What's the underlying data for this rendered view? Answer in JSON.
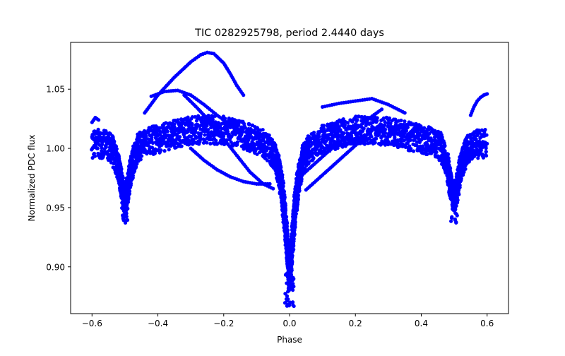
{
  "chart_data": {
    "type": "scatter",
    "title": "TIC 0282925798, period 2.4440 days",
    "xlabel": "Phase",
    "ylabel": "Normalized PDC flux",
    "xlim": [
      -0.665,
      0.665
    ],
    "ylim": [
      0.8605,
      1.0895
    ],
    "xticks": [
      -0.6,
      -0.4,
      -0.2,
      0.0,
      0.2,
      0.4,
      0.6
    ],
    "xtick_labels": [
      "−0.6",
      "−0.4",
      "−0.2",
      "0.0",
      "0.2",
      "0.4",
      "0.6"
    ],
    "yticks": [
      0.9,
      0.95,
      1.0,
      1.05
    ],
    "ytick_labels": [
      "0.90",
      "0.95",
      "1.00",
      "1.05"
    ],
    "grid": false,
    "legend": "none",
    "marker_color": "#0000ff",
    "phase_range": [
      -0.6,
      0.6
    ],
    "primary_eclipse": {
      "phase": 0.0,
      "min_flux": 0.866
    },
    "secondary_eclipse": {
      "phase": -0.5,
      "min_flux": 0.937,
      "repeat_phase": 0.5
    },
    "series": [
      {
        "x": [
          -0.6,
          -0.58,
          -0.56,
          -0.54,
          -0.52,
          -0.51,
          -0.5,
          -0.49,
          -0.48,
          -0.46,
          -0.44,
          -0.4,
          -0.35,
          -0.3,
          -0.25,
          -0.2,
          -0.15,
          -0.1,
          -0.06,
          -0.04,
          -0.025,
          -0.015,
          -0.008,
          -0.003,
          0.0,
          0.003,
          0.008,
          0.015,
          0.025,
          0.04,
          0.06,
          0.1,
          0.15,
          0.2,
          0.25,
          0.3,
          0.35,
          0.4,
          0.44,
          0.46,
          0.48,
          0.49,
          0.5,
          0.51,
          0.52,
          0.54,
          0.56,
          0.58,
          0.6
        ],
        "y": [
          1.004,
          1.004,
          1.003,
          1.0,
          0.985,
          0.968,
          0.957,
          0.968,
          0.985,
          1.001,
          1.005,
          1.008,
          1.012,
          1.015,
          1.016,
          1.015,
          1.012,
          1.007,
          1.0,
          0.99,
          0.97,
          0.945,
          0.92,
          0.9,
          0.893,
          0.9,
          0.92,
          0.945,
          0.97,
          0.99,
          1.0,
          1.008,
          1.012,
          1.015,
          1.016,
          1.014,
          1.011,
          1.008,
          1.005,
          1.001,
          0.985,
          0.968,
          0.957,
          0.968,
          0.985,
          1.0,
          1.003,
          1.004,
          1.004
        ]
      },
      {
        "x": [
          -0.44,
          -0.4,
          -0.35,
          -0.3,
          -0.27,
          -0.25,
          -0.23,
          -0.2,
          -0.18,
          -0.16,
          -0.14
        ],
        "y": [
          1.03,
          1.045,
          1.06,
          1.073,
          1.079,
          1.081,
          1.08,
          1.072,
          1.063,
          1.053,
          1.045
        ]
      },
      {
        "x": [
          -0.42,
          -0.38,
          -0.34,
          -0.3,
          -0.26,
          -0.22,
          -0.18,
          -0.15
        ],
        "y": [
          1.044,
          1.048,
          1.049,
          1.045,
          1.037,
          1.028,
          1.02,
          1.015
        ]
      },
      {
        "x": [
          -0.32,
          -0.28,
          -0.24,
          -0.2,
          -0.16,
          -0.12,
          -0.08,
          -0.05
        ],
        "y": [
          1.045,
          1.034,
          1.022,
          1.008,
          0.994,
          0.98,
          0.97,
          0.966
        ]
      },
      {
        "x": [
          -0.3,
          -0.26,
          -0.22,
          -0.18,
          -0.14,
          -0.1,
          -0.06
        ],
        "y": [
          1.0,
          0.99,
          0.982,
          0.976,
          0.972,
          0.97,
          0.97
        ]
      },
      {
        "x": [
          0.04,
          0.08,
          0.12,
          0.16,
          0.2,
          0.24,
          0.28
        ],
        "y": [
          0.978,
          0.988,
          0.998,
          1.007,
          1.016,
          1.025,
          1.033
        ]
      },
      {
        "x": [
          0.05,
          0.09,
          0.13,
          0.17,
          0.21,
          0.25
        ],
        "y": [
          0.965,
          0.975,
          0.985,
          0.995,
          1.005,
          1.015
        ]
      },
      {
        "x": [
          0.1,
          0.15,
          0.2,
          0.25,
          0.3,
          0.35
        ],
        "y": [
          1.035,
          1.038,
          1.04,
          1.042,
          1.037,
          1.03
        ]
      },
      {
        "x": [
          0.55,
          0.56,
          0.57,
          0.58,
          0.59,
          0.6
        ],
        "y": [
          1.028,
          1.035,
          1.04,
          1.043,
          1.045,
          1.046
        ]
      },
      {
        "x": [
          -0.6,
          -0.59,
          -0.58
        ],
        "y": [
          1.022,
          1.026,
          1.024
        ]
      }
    ]
  }
}
